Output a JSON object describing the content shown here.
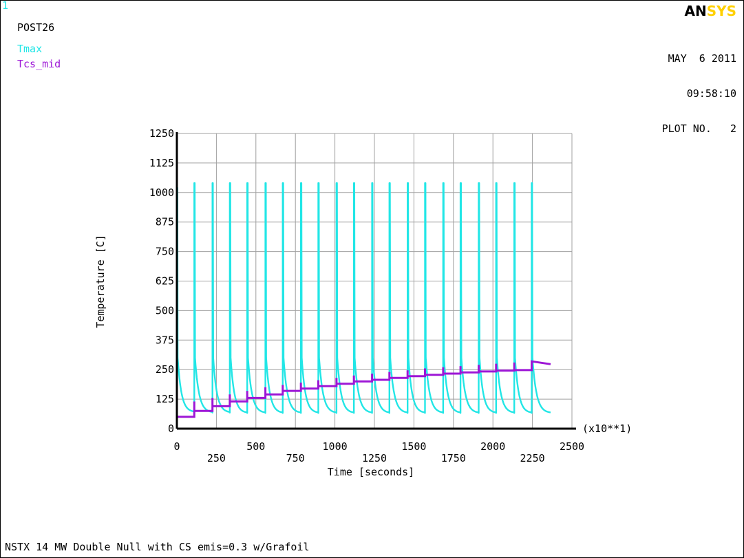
{
  "header": {
    "window_number": "1",
    "post_label": "POST26",
    "logo_an": "AN",
    "logo_sys": "SYS",
    "date": "MAY  6 2011",
    "time": "09:58:10",
    "plot_label": "PLOT NO.   2"
  },
  "footer": {
    "title": "NSTX 14 MW Double Null with CS emis=0.3 w/Grafoil"
  },
  "colors": {
    "tmax": "#22e6e6",
    "tcs_mid": "#9d16d6",
    "grid": "#a0a0a0",
    "axis": "#000000"
  },
  "chart_data": {
    "type": "line",
    "xlabel": "Time  [seconds]",
    "ylabel": "Temperature  [C]",
    "x_multiplier_label": "(x10**1)",
    "xlim": [
      0,
      2500
    ],
    "ylim": [
      0,
      1250
    ],
    "x_ticks": [
      0,
      250,
      500,
      750,
      1000,
      1250,
      1500,
      1750,
      2000,
      2250,
      2500
    ],
    "y_ticks": [
      0,
      125,
      250,
      375,
      500,
      625,
      750,
      875,
      1000,
      1125,
      1250
    ],
    "grid": true,
    "series": [
      {
        "name": "Tmax",
        "color": "#22e6e6",
        "cycle_starts": [
          0,
          110,
          225,
          335,
          445,
          560,
          670,
          785,
          895,
          1010,
          1120,
          1235,
          1345,
          1460,
          1570,
          1685,
          1795,
          1910,
          2020,
          2135,
          2245
        ],
        "peak_values": [
          1020,
          1040,
          1040,
          1040,
          1040,
          1040,
          1040,
          1040,
          1040,
          1040,
          1040,
          1040,
          1040,
          1040,
          1040,
          1040,
          1040,
          1040,
          1040,
          1040,
          1040
        ],
        "trough_values": [
          70,
          68,
          68,
          66,
          66,
          66,
          66,
          66,
          66,
          66,
          66,
          66,
          66,
          66,
          66,
          66,
          66,
          66,
          66,
          66,
          66
        ],
        "end_x": 2365
      },
      {
        "name": "Tcs_mid",
        "color": "#9d16d6",
        "steps": [
          {
            "x0": 0,
            "x1": 110,
            "low": 50,
            "high": 95
          },
          {
            "x0": 110,
            "x1": 225,
            "low": 75,
            "high": 115
          },
          {
            "x0": 225,
            "x1": 335,
            "low": 95,
            "high": 130
          },
          {
            "x0": 335,
            "x1": 445,
            "low": 115,
            "high": 145
          },
          {
            "x0": 445,
            "x1": 560,
            "low": 130,
            "high": 160
          },
          {
            "x0": 560,
            "x1": 670,
            "low": 145,
            "high": 175
          },
          {
            "x0": 670,
            "x1": 785,
            "low": 160,
            "high": 185
          },
          {
            "x0": 785,
            "x1": 895,
            "low": 170,
            "high": 195
          },
          {
            "x0": 895,
            "x1": 1010,
            "low": 180,
            "high": 205
          },
          {
            "x0": 1010,
            "x1": 1120,
            "low": 190,
            "high": 215
          },
          {
            "x0": 1120,
            "x1": 1235,
            "low": 200,
            "high": 225
          },
          {
            "x0": 1235,
            "x1": 1345,
            "low": 207,
            "high": 233
          },
          {
            "x0": 1345,
            "x1": 1460,
            "low": 215,
            "high": 240
          },
          {
            "x0": 1460,
            "x1": 1570,
            "low": 222,
            "high": 247
          },
          {
            "x0": 1570,
            "x1": 1685,
            "low": 228,
            "high": 255
          },
          {
            "x0": 1685,
            "x1": 1795,
            "low": 233,
            "high": 260
          },
          {
            "x0": 1795,
            "x1": 1910,
            "low": 238,
            "high": 265
          },
          {
            "x0": 1910,
            "x1": 2020,
            "low": 242,
            "high": 270
          },
          {
            "x0": 2020,
            "x1": 2135,
            "low": 246,
            "high": 275
          },
          {
            "x0": 2135,
            "x1": 2245,
            "low": 248,
            "high": 280
          },
          {
            "x0": 2245,
            "x1": 2365,
            "low": 248,
            "high": 285
          }
        ]
      }
    ]
  }
}
